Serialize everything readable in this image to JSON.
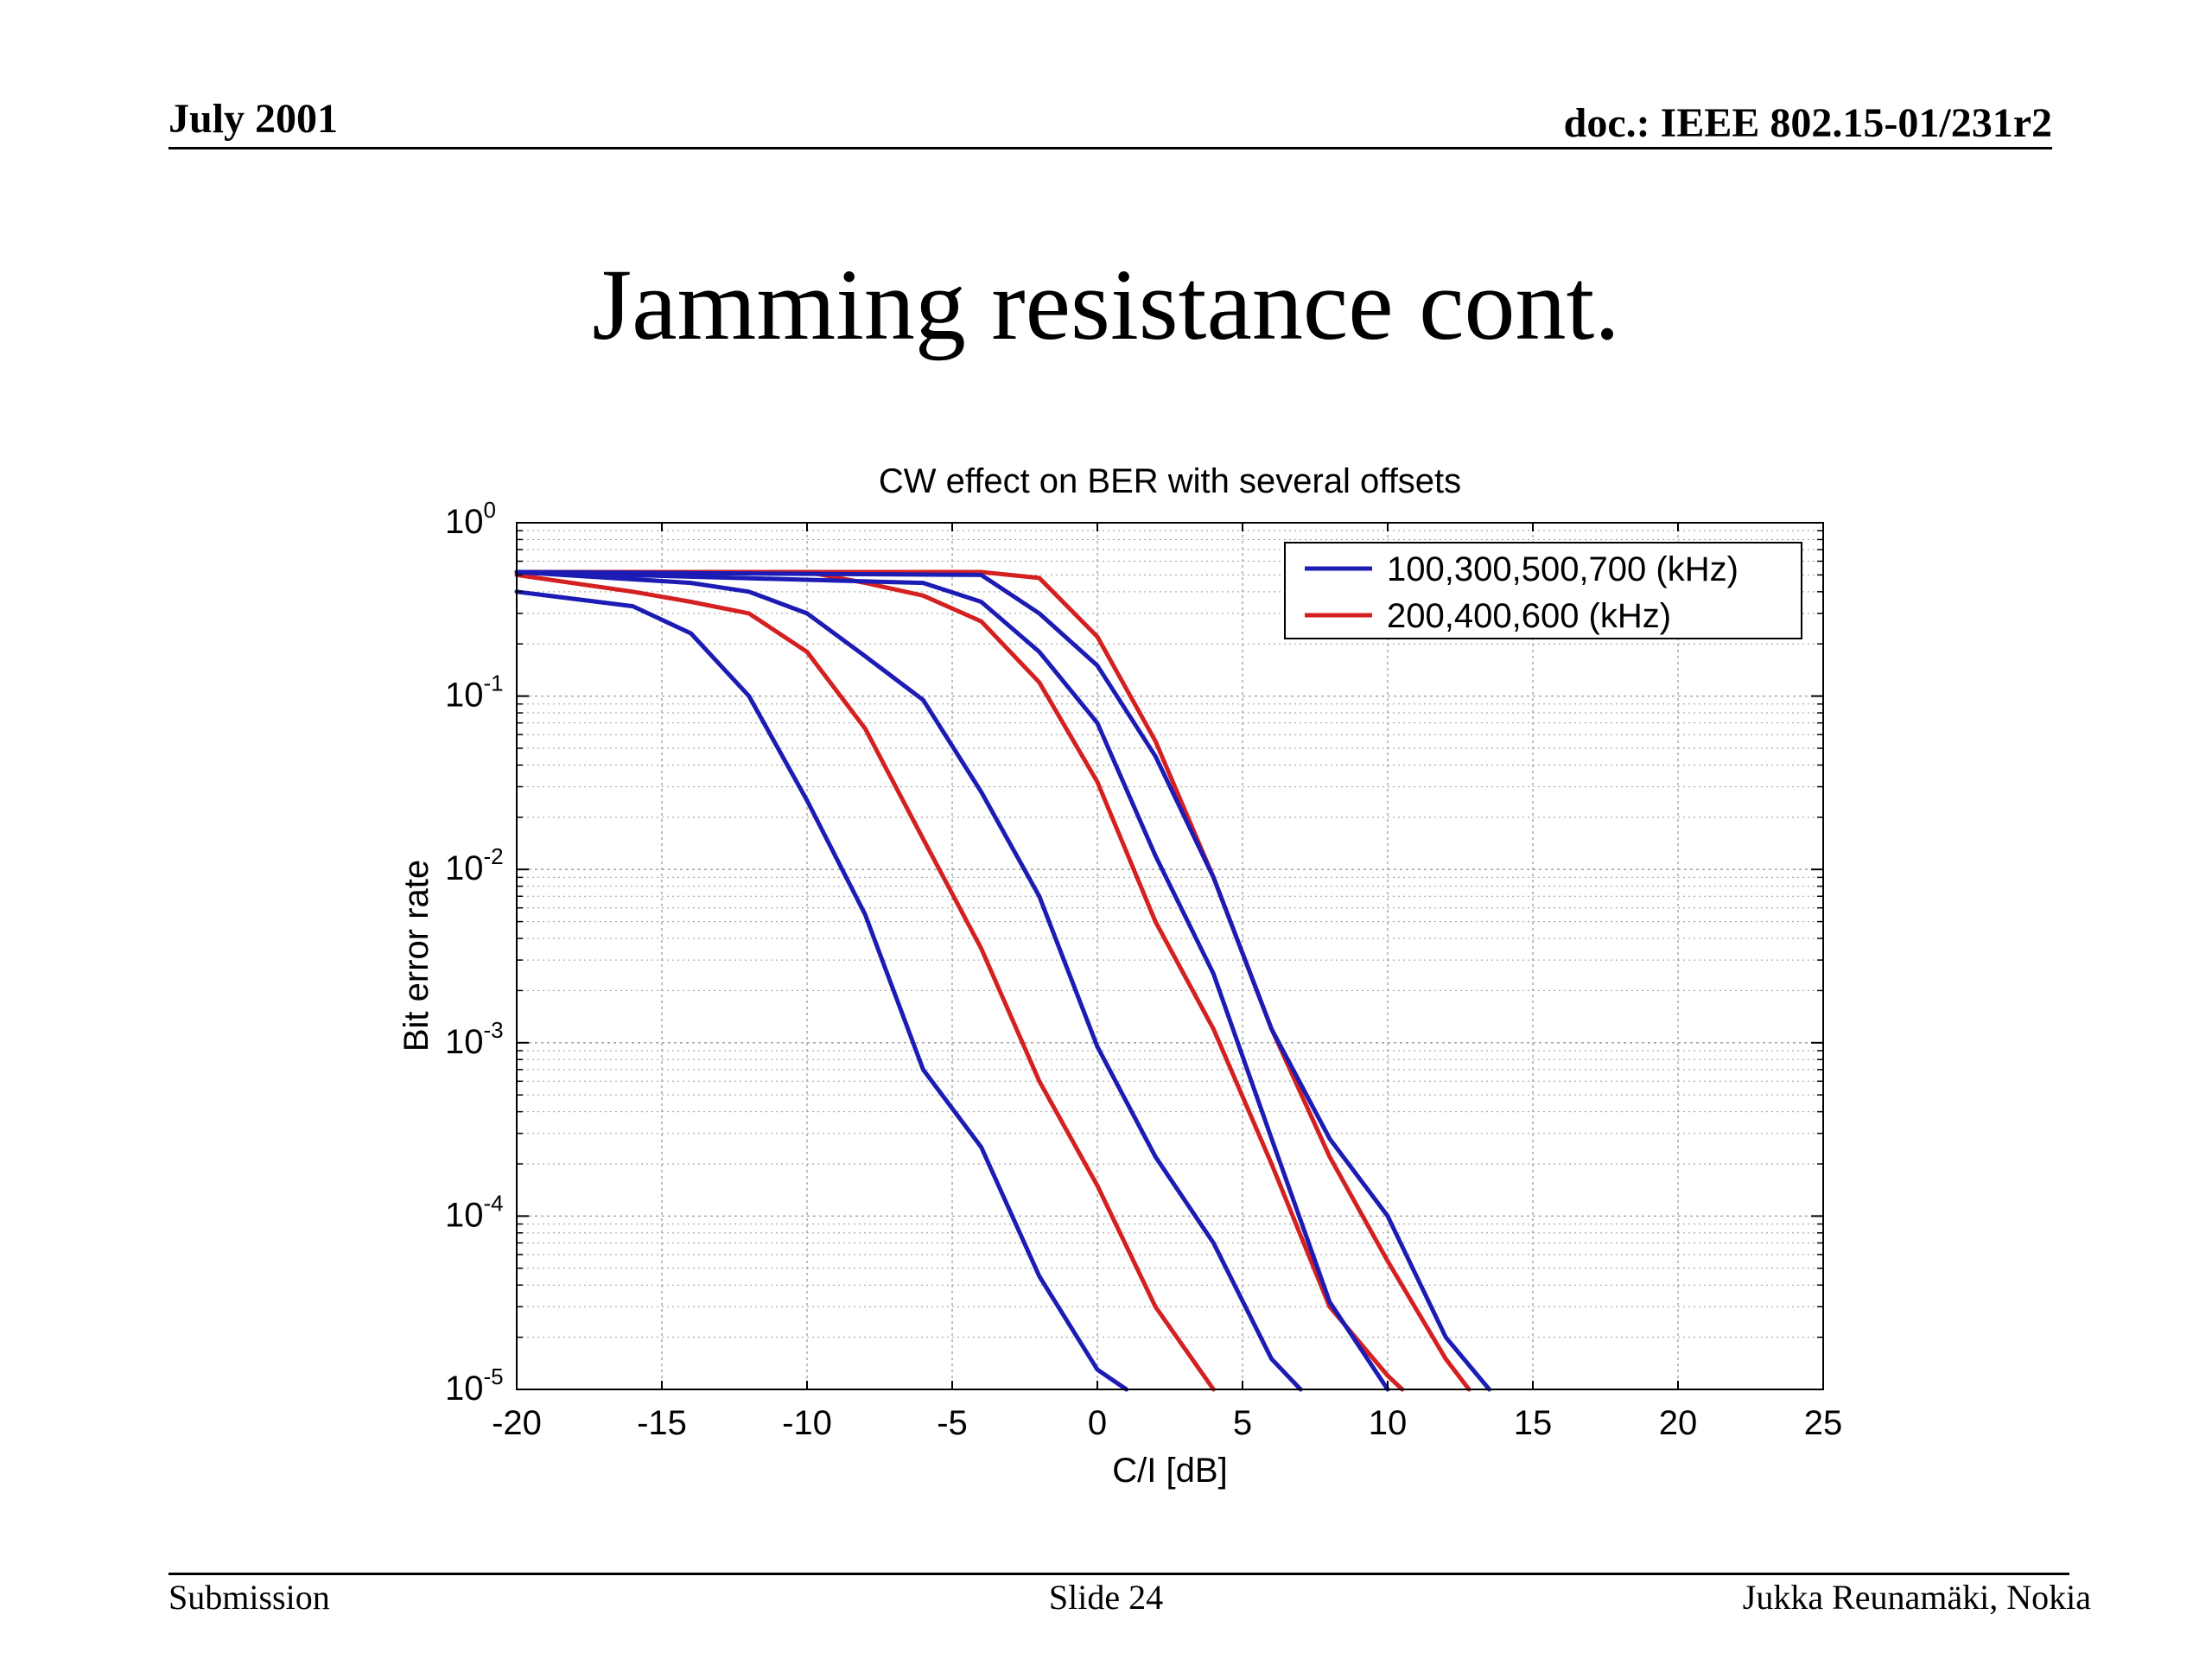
{
  "header": {
    "date": "July 2001",
    "doc": "doc.: IEEE 802.15-01/231r2"
  },
  "slide_title": "Jamming resistance cont.",
  "footer": {
    "left": "Submission",
    "center": "Slide 24",
    "right": "Jukka Reunamäki, Nokia"
  },
  "colors": {
    "blue": "#1c1cb4",
    "red": "#d42020",
    "grid": "#9a9a9a"
  },
  "chart_data": {
    "type": "line",
    "title": "CW effect on BER with several offsets",
    "xlabel": "C/I [dB]",
    "ylabel": "Bit error rate",
    "xlim": [
      -20,
      25
    ],
    "ylim": [
      1e-05,
      1
    ],
    "yscale": "log",
    "grid": true,
    "legend_position": "top-right",
    "xticks": [
      "-20",
      "-15",
      "-10",
      "-5",
      "0",
      "5",
      "10",
      "15",
      "20",
      "25"
    ],
    "yticks": [
      {
        "base": "10",
        "exp": "0"
      },
      {
        "base": "10",
        "exp": "-1"
      },
      {
        "base": "10",
        "exp": "-2"
      },
      {
        "base": "10",
        "exp": "-3"
      },
      {
        "base": "10",
        "exp": "-4"
      },
      {
        "base": "10",
        "exp": "-5"
      }
    ],
    "legend": [
      {
        "label": "100,300,500,700 (kHz)",
        "color": "#1c1cb4"
      },
      {
        "label": "200,400,600 (kHz)",
        "color": "#d42020"
      }
    ],
    "series": [
      {
        "group": "100,300,500,700 (kHz)",
        "color": "#1c1cb4",
        "x": [
          -20,
          -16,
          -14,
          -12,
          -10,
          -8,
          -6,
          -4,
          -2,
          0,
          1
        ],
        "y": [
          0.4,
          0.33,
          0.23,
          0.1,
          0.025,
          0.0055,
          0.0007,
          0.00025,
          4.5e-05,
          1.3e-05,
          1e-05
        ]
      },
      {
        "group": "200,400,600 (kHz)",
        "color": "#d42020",
        "x": [
          -20,
          -16,
          -14,
          -12,
          -10,
          -8,
          -6,
          -4,
          -2,
          0,
          2,
          4
        ],
        "y": [
          0.5,
          0.4,
          0.35,
          0.3,
          0.18,
          0.065,
          0.015,
          0.0035,
          0.0006,
          0.00015,
          3e-05,
          1e-05
        ]
      },
      {
        "group": "100,300,500,700 (kHz)",
        "color": "#1c1cb4",
        "x": [
          -20,
          -14,
          -12,
          -10,
          -8,
          -6,
          -4,
          -2,
          0,
          2,
          4,
          6,
          7
        ],
        "y": [
          0.52,
          0.45,
          0.4,
          0.3,
          0.17,
          0.095,
          0.028,
          0.007,
          0.00095,
          0.00022,
          7e-05,
          1.5e-05,
          1e-05
        ]
      },
      {
        "group": "200,400,600 (kHz)",
        "color": "#d42020",
        "x": [
          -20,
          -10,
          -8,
          -6,
          -4,
          -2,
          0,
          2,
          4,
          6,
          8,
          10,
          10.5
        ],
        "y": [
          0.52,
          0.52,
          0.45,
          0.38,
          0.27,
          0.12,
          0.032,
          0.005,
          0.0012,
          0.0002,
          3e-05,
          1.2e-05,
          1e-05
        ]
      },
      {
        "group": "100,300,500,700 (kHz)",
        "color": "#1c1cb4",
        "x": [
          -20,
          -6,
          -4,
          -2,
          0,
          2,
          4,
          6,
          8,
          10
        ],
        "y": [
          0.52,
          0.45,
          0.35,
          0.18,
          0.07,
          0.012,
          0.0025,
          0.00028,
          3.2e-05,
          1e-05
        ]
      },
      {
        "group": "200,400,600 (kHz)",
        "color": "#d42020",
        "x": [
          -20,
          -4,
          -2,
          0,
          2,
          4,
          6,
          8,
          10,
          12,
          12.8
        ],
        "y": [
          0.52,
          0.52,
          0.48,
          0.22,
          0.055,
          0.009,
          0.0012,
          0.00022,
          5.5e-05,
          1.5e-05,
          1e-05
        ]
      },
      {
        "group": "100,300,500,700 (kHz)",
        "color": "#1c1cb4",
        "x": [
          -20,
          -4,
          -2,
          0,
          2,
          4,
          6,
          8,
          10,
          12,
          13.5
        ],
        "y": [
          0.52,
          0.5,
          0.3,
          0.15,
          0.045,
          0.009,
          0.0012,
          0.00028,
          0.0001,
          2e-05,
          1e-05
        ]
      }
    ]
  }
}
